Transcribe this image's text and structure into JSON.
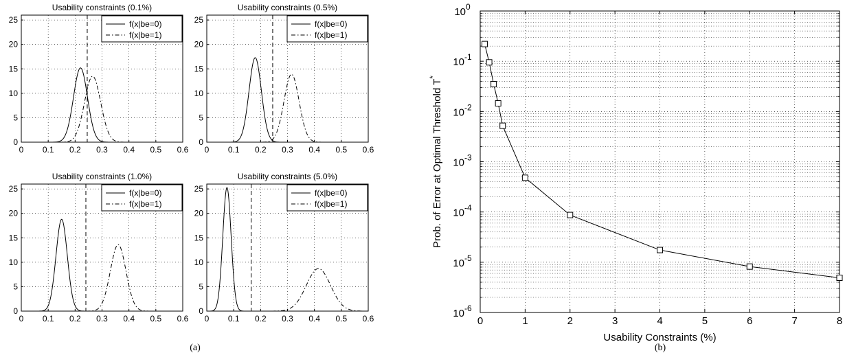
{
  "captions": {
    "left": "(a)",
    "right": "(b)"
  },
  "chart_data": [
    {
      "type": "line",
      "title": "Usability constraints (0.1%)",
      "xlim": [
        0,
        0.6
      ],
      "ylim": [
        0,
        26
      ],
      "xticks": [
        "0",
        "0.1",
        "0.2",
        "0.3",
        "0.4",
        "0.5",
        "0.6"
      ],
      "yticks": [
        "0",
        "5",
        "10",
        "15",
        "20",
        "25"
      ],
      "grid": true,
      "legend": "top-right",
      "threshold": 0.245,
      "series": [
        {
          "name": "f(x|be=0)",
          "dash": "solid",
          "mean": 0.22,
          "sd": 0.026,
          "peak": 15.2
        },
        {
          "name": "f(x|be=1)",
          "dash": "dashdot",
          "mean": 0.265,
          "sd": 0.03,
          "peak": 13.5
        }
      ]
    },
    {
      "type": "line",
      "title": "Usability constraints (0.5%)",
      "xlim": [
        0,
        0.6
      ],
      "ylim": [
        0,
        26
      ],
      "xticks": [
        "0",
        "0.1",
        "0.2",
        "0.3",
        "0.4",
        "0.5",
        "0.6"
      ],
      "yticks": [
        "0",
        "5",
        "10",
        "15",
        "20",
        "25"
      ],
      "grid": true,
      "legend": "top-right",
      "threshold": 0.245,
      "series": [
        {
          "name": "f(x|be=0)",
          "dash": "solid",
          "mean": 0.18,
          "sd": 0.023,
          "peak": 17.3
        },
        {
          "name": "f(x|be=1)",
          "dash": "dashdot",
          "mean": 0.315,
          "sd": 0.028,
          "peak": 13.9
        }
      ]
    },
    {
      "type": "line",
      "title": "Usability constraints (1.0%)",
      "xlim": [
        0,
        0.6
      ],
      "ylim": [
        0,
        26
      ],
      "xticks": [
        "0",
        "0.1",
        "0.2",
        "0.3",
        "0.4",
        "0.5",
        "0.6"
      ],
      "yticks": [
        "0",
        "5",
        "10",
        "15",
        "20",
        "25"
      ],
      "grid": true,
      "legend": "top-right",
      "threshold": 0.24,
      "series": [
        {
          "name": "f(x|be=0)",
          "dash": "solid",
          "mean": 0.15,
          "sd": 0.021,
          "peak": 18.8
        },
        {
          "name": "f(x|be=1)",
          "dash": "dashdot",
          "mean": 0.36,
          "sd": 0.029,
          "peak": 13.6
        }
      ]
    },
    {
      "type": "line",
      "title": "Usability constraints (5.0%)",
      "xlim": [
        0,
        0.6
      ],
      "ylim": [
        0,
        26
      ],
      "xticks": [
        "0",
        "0.1",
        "0.2",
        "0.3",
        "0.4",
        "0.5",
        "0.6"
      ],
      "yticks": [
        "0",
        "5",
        "10",
        "15",
        "20",
        "25"
      ],
      "grid": true,
      "legend": "top-right",
      "threshold": 0.165,
      "series": [
        {
          "name": "f(x|be=0)",
          "dash": "solid",
          "mean": 0.075,
          "sd": 0.0155,
          "peak": 25.3
        },
        {
          "name": "f(x|be=1)",
          "dash": "dashdot",
          "mean": 0.415,
          "sd": 0.045,
          "peak": 8.7
        }
      ]
    },
    {
      "type": "line",
      "title": "",
      "xlabel": "Usability Constraints (%)",
      "ylabel": "Prob. of Error at Optimal Threshold T",
      "ylabel_sup": "*",
      "xlim": [
        0,
        8
      ],
      "ylim": [
        1e-06,
        1
      ],
      "yscale": "log",
      "xticks": [
        "0",
        "1",
        "2",
        "3",
        "4",
        "5",
        "6",
        "7",
        "8"
      ],
      "yticks": [
        {
          "base": "10",
          "exp": "-6"
        },
        {
          "base": "10",
          "exp": "-5"
        },
        {
          "base": "10",
          "exp": "-4"
        },
        {
          "base": "10",
          "exp": "-3"
        },
        {
          "base": "10",
          "exp": "-2"
        },
        {
          "base": "10",
          "exp": "-1"
        },
        {
          "base": "10",
          "exp": "0"
        }
      ],
      "grid": true,
      "marker": "square",
      "x": [
        0.1,
        0.2,
        0.3,
        0.4,
        0.5,
        1,
        2,
        4,
        6,
        8
      ],
      "y": [
        0.22,
        0.095,
        0.035,
        0.0145,
        0.0052,
        0.00048,
        8.7e-05,
        1.75e-05,
        8.2e-06,
        4.9e-06
      ]
    }
  ]
}
